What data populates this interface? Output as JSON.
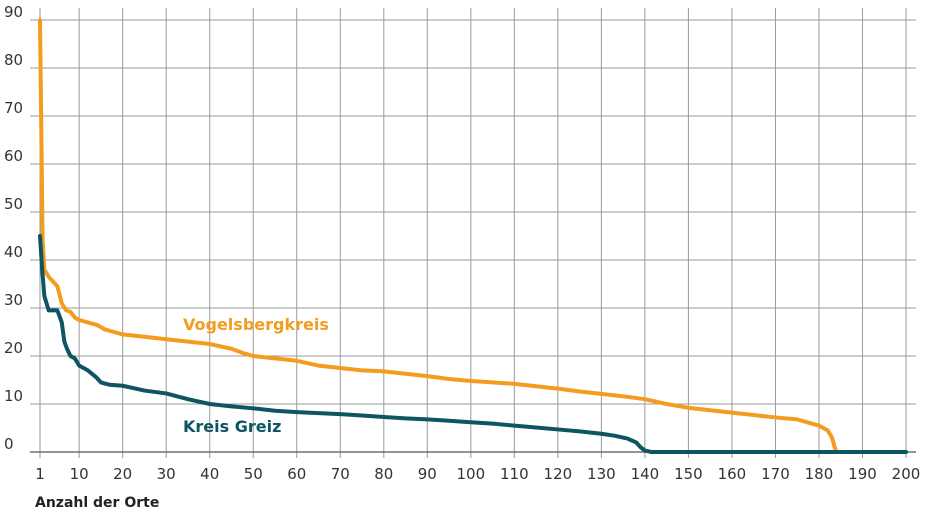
{
  "chart_data": {
    "type": "line",
    "title": "",
    "xlabel": "Anzahl der Orte",
    "ylabel": "",
    "xlim": [
      1,
      200
    ],
    "ylim": [
      0,
      90
    ],
    "x_ticks": [
      1,
      10,
      20,
      30,
      40,
      50,
      60,
      70,
      80,
      90,
      100,
      110,
      120,
      130,
      140,
      150,
      160,
      170,
      180,
      190,
      200
    ],
    "y_ticks": [
      0,
      10,
      20,
      30,
      40,
      50,
      60,
      70,
      80,
      90
    ],
    "grid": true,
    "series": [
      {
        "name": "Vogelsbergkreis",
        "color": "#f39c1f",
        "points": [
          [
            1,
            90
          ],
          [
            1.6,
            44
          ],
          [
            2,
            38
          ],
          [
            3,
            36.5
          ],
          [
            4,
            35.5
          ],
          [
            5,
            34.5
          ],
          [
            6,
            31
          ],
          [
            7,
            29.5
          ],
          [
            8,
            29.2
          ],
          [
            9,
            28
          ],
          [
            10,
            27.5
          ],
          [
            12,
            27
          ],
          [
            14,
            26.5
          ],
          [
            16,
            25.5
          ],
          [
            18,
            25
          ],
          [
            20,
            24.5
          ],
          [
            25,
            24
          ],
          [
            30,
            23.5
          ],
          [
            35,
            23
          ],
          [
            40,
            22.5
          ],
          [
            45,
            21.5
          ],
          [
            48,
            20.5
          ],
          [
            50,
            20
          ],
          [
            55,
            19.5
          ],
          [
            60,
            19
          ],
          [
            65,
            18
          ],
          [
            70,
            17.5
          ],
          [
            75,
            17
          ],
          [
            80,
            16.8
          ],
          [
            85,
            16.3
          ],
          [
            90,
            15.8
          ],
          [
            95,
            15.2
          ],
          [
            100,
            14.8
          ],
          [
            105,
            14.5
          ],
          [
            110,
            14.2
          ],
          [
            115,
            13.7
          ],
          [
            120,
            13.2
          ],
          [
            125,
            12.6
          ],
          [
            130,
            12.1
          ],
          [
            135,
            11.6
          ],
          [
            140,
            11
          ],
          [
            145,
            10
          ],
          [
            150,
            9.2
          ],
          [
            155,
            8.7
          ],
          [
            160,
            8.2
          ],
          [
            165,
            7.7
          ],
          [
            170,
            7.2
          ],
          [
            175,
            6.8
          ],
          [
            178,
            6
          ],
          [
            180,
            5.5
          ],
          [
            182,
            4.5
          ],
          [
            183,
            3
          ],
          [
            183.6,
            1
          ],
          [
            184,
            0
          ]
        ]
      },
      {
        "name": "Kreis Greiz",
        "color": "#0d5563",
        "points": [
          [
            1,
            45
          ],
          [
            1.5,
            38
          ],
          [
            2,
            32.5
          ],
          [
            3,
            29.5
          ],
          [
            4,
            29.5
          ],
          [
            5,
            29.5
          ],
          [
            6,
            27
          ],
          [
            6.6,
            23
          ],
          [
            7.2,
            21.5
          ],
          [
            8,
            20
          ],
          [
            9,
            19.5
          ],
          [
            10,
            18
          ],
          [
            12,
            17
          ],
          [
            14,
            15.5
          ],
          [
            15,
            14.5
          ],
          [
            17,
            14
          ],
          [
            20,
            13.8
          ],
          [
            25,
            12.8
          ],
          [
            30,
            12.2
          ],
          [
            35,
            11
          ],
          [
            40,
            10
          ],
          [
            45,
            9.5
          ],
          [
            50,
            9.1
          ],
          [
            55,
            8.6
          ],
          [
            60,
            8.3
          ],
          [
            65,
            8.1
          ],
          [
            70,
            7.9
          ],
          [
            75,
            7.6
          ],
          [
            80,
            7.3
          ],
          [
            85,
            7
          ],
          [
            90,
            6.8
          ],
          [
            95,
            6.5
          ],
          [
            100,
            6.2
          ],
          [
            105,
            5.9
          ],
          [
            110,
            5.5
          ],
          [
            115,
            5.1
          ],
          [
            120,
            4.7
          ],
          [
            125,
            4.3
          ],
          [
            130,
            3.8
          ],
          [
            133,
            3.4
          ],
          [
            136,
            2.8
          ],
          [
            138,
            2
          ],
          [
            139,
            1
          ],
          [
            140,
            0.3
          ],
          [
            141.5,
            0
          ],
          [
            200,
            0
          ]
        ]
      }
    ]
  }
}
